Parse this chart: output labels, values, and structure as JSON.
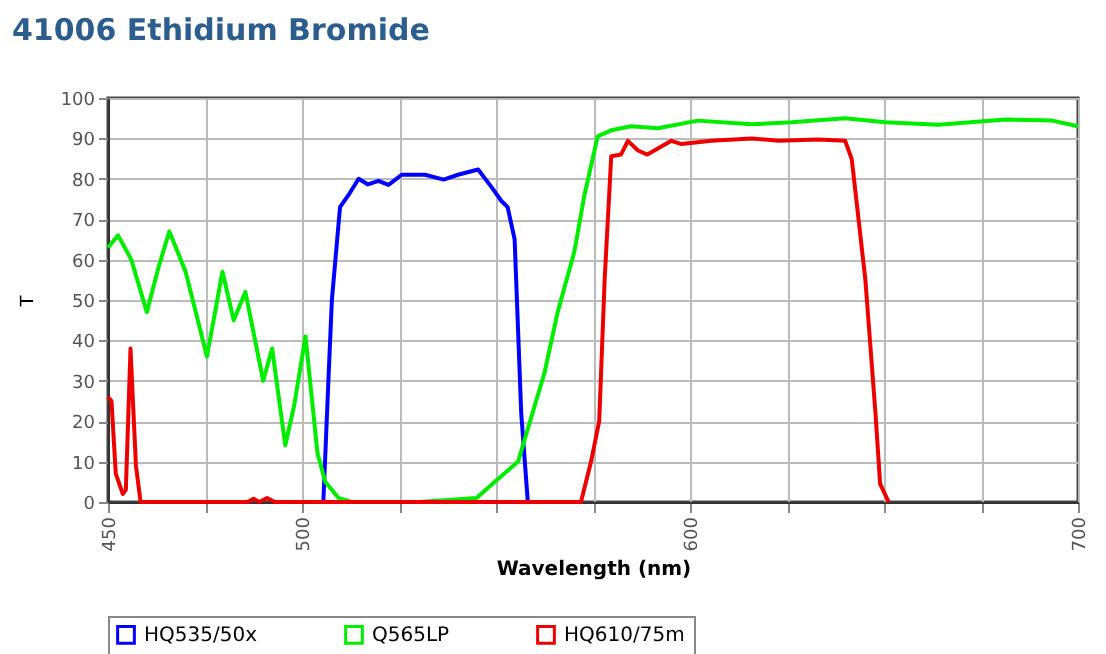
{
  "chart_data": {
    "type": "line",
    "title": "41006 Ethidium Bromide",
    "xlabel": "Wavelength (nm)",
    "ylabel": "T",
    "xlim": [
      450,
      700
    ],
    "ylim": [
      0,
      100
    ],
    "xticks": [
      450,
      {
        "value": 475,
        "label": null
      },
      500,
      {
        "value": 525,
        "label": null
      },
      {
        "value": 550,
        "label": null
      },
      {
        "value": 575,
        "label": null
      },
      600,
      {
        "value": 625,
        "label": null
      },
      {
        "value": 650,
        "label": null
      },
      {
        "value": 675,
        "label": null
      },
      700
    ],
    "yticks": [
      0,
      10,
      20,
      30,
      40,
      50,
      60,
      70,
      80,
      90,
      100
    ],
    "grid": true,
    "legend": "bottom",
    "marker": "none",
    "line_style": "solid",
    "series": [
      {
        "name": "HQ535/50x",
        "color": "#0000ff",
        "x": [
          505.5,
          506.8,
          507.7,
          509.8,
          512,
          514.6,
          517,
          519.7,
          522.3,
          525.7,
          531.7,
          536.5,
          540.2,
          545.4,
          548.8,
          551.4,
          553,
          554.8,
          556.5,
          558.2
        ],
        "values": [
          0,
          30,
          50,
          73,
          76,
          80,
          78.6,
          79.5,
          78.5,
          81,
          81,
          79.8,
          81,
          82.3,
          78,
          74.5,
          73,
          65,
          22,
          0
        ]
      },
      {
        "name": "Q565LP",
        "color": "#00ee00",
        "x": [
          450,
          452.6,
          456,
          460,
          463,
          465.8,
          470,
          475.5,
          479.5,
          482.4,
          485.4,
          490,
          492.3,
          495.7,
          498,
          500.9,
          504,
          506,
          509.4,
          512.8,
          530,
          545,
          549.7,
          555.7,
          562.5,
          565.9,
          570.2,
          572.8,
          576.2,
          579.7,
          584.8,
          591.7,
          602,
          615.9,
          626.2,
          640,
          650.3,
          664,
          681.4,
          693.4,
          700
        ],
        "values": [
          63,
          66,
          60,
          47,
          58,
          67,
          57,
          36,
          57,
          45,
          52,
          30,
          38,
          14,
          24,
          41,
          12,
          5,
          1,
          0,
          0,
          1,
          5,
          10,
          32,
          47,
          62,
          76,
          90.5,
          92,
          93,
          92.5,
          94.4,
          93.5,
          94,
          95,
          94,
          93.4,
          94.7,
          94.4,
          93
        ]
      },
      {
        "name": "HQ610/75m",
        "color": "#ee0000",
        "x": [
          450,
          450.9,
          452,
          453.8,
          454.6,
          455.8,
          457.2,
          458.4,
          486,
          487.5,
          489,
          491,
          493,
          571.9,
          574.5,
          576.6,
          578,
          579.7,
          582.2,
          584,
          586.6,
          589,
          595.2,
          597.8,
          605.5,
          615.9,
          622.8,
          633,
          640,
          641.7,
          645.2,
          647.8,
          649,
          651.2
        ],
        "values": [
          26,
          25,
          7,
          2,
          3,
          38,
          9,
          0,
          0,
          0.8,
          0,
          1,
          0,
          0,
          10,
          20,
          55,
          85.6,
          86,
          89.4,
          87,
          86,
          89.4,
          88.6,
          89.4,
          90,
          89.4,
          89.7,
          89.4,
          84.8,
          55,
          22,
          4.5,
          0
        ]
      }
    ]
  }
}
